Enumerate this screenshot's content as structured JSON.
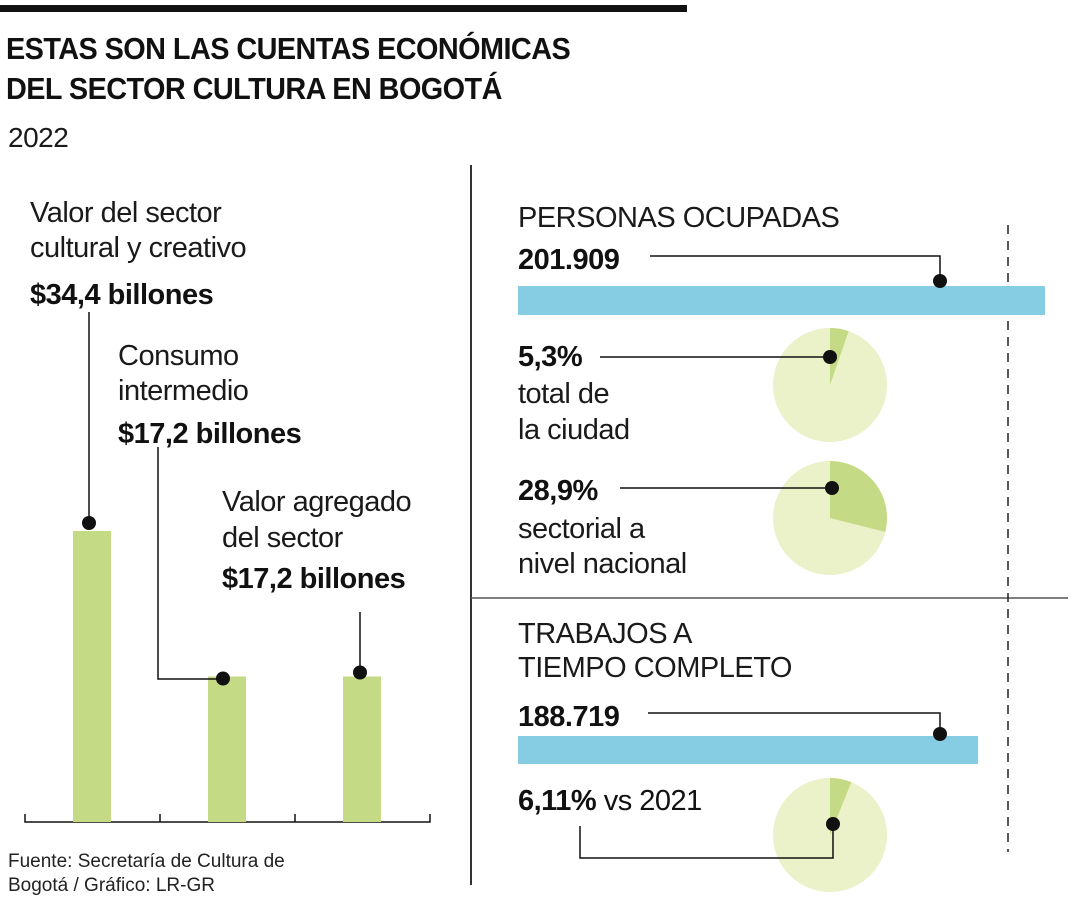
{
  "header": {
    "title_line1": "ESTAS SON LAS CUENTAS ECONÓMICAS",
    "title_line2": "DEL SECTOR CULTURA EN BOGOTÁ",
    "year": "2022"
  },
  "left": {
    "items": [
      {
        "label_line1": "Valor del sector",
        "label_line2": "cultural y creativo",
        "value": "$34,4 billones"
      },
      {
        "label_line1": "Consumo",
        "label_line2": "intermedio",
        "value": "$17,2 billones"
      },
      {
        "label_line1": "Valor agregado",
        "label_line2": "del sector",
        "value": "$17,2 billones"
      }
    ]
  },
  "right": {
    "personas": {
      "title": "PERSONAS OCUPADAS",
      "value": "201.909",
      "pct_city": "5,3%",
      "pct_city_line1": "total de",
      "pct_city_line2": "la ciudad",
      "pct_nat": "28,9%",
      "pct_nat_line1": "sectorial a",
      "pct_nat_line2": "nivel nacional"
    },
    "trabajos": {
      "title_line1": "TRABAJOS A",
      "title_line2": "TIEMPO COMPLETO",
      "value": "188.719",
      "pct": "6,11%",
      "pct_suffix": "vs 2021"
    }
  },
  "source": "Fuente: Secretaría de Cultura de Bogotá / Gráfico: LR-GR",
  "colors": {
    "bar_green": "#c5da85",
    "pie_light": "#ebf1c8",
    "bar_blue": "#86cde3",
    "ink": "#111111"
  },
  "chart_data": [
    {
      "type": "bar",
      "categories": [
        "Valor del sector cultural y creativo",
        "Consumo intermedio",
        "Valor agregado del sector"
      ],
      "values": [
        34.4,
        17.2,
        17.2
      ],
      "unit": "billones"
    },
    {
      "type": "bar",
      "orientation": "horizontal",
      "categories": [
        "Personas ocupadas",
        "Trabajos a tiempo completo"
      ],
      "values": [
        201909,
        188719
      ]
    },
    {
      "type": "pie",
      "charts": [
        {
          "label": "total de la ciudad",
          "value": 5.3
        },
        {
          "label": "sectorial a nivel nacional",
          "value": 28.9
        },
        {
          "label": "vs 2021",
          "value": 6.11
        }
      ]
    }
  ]
}
